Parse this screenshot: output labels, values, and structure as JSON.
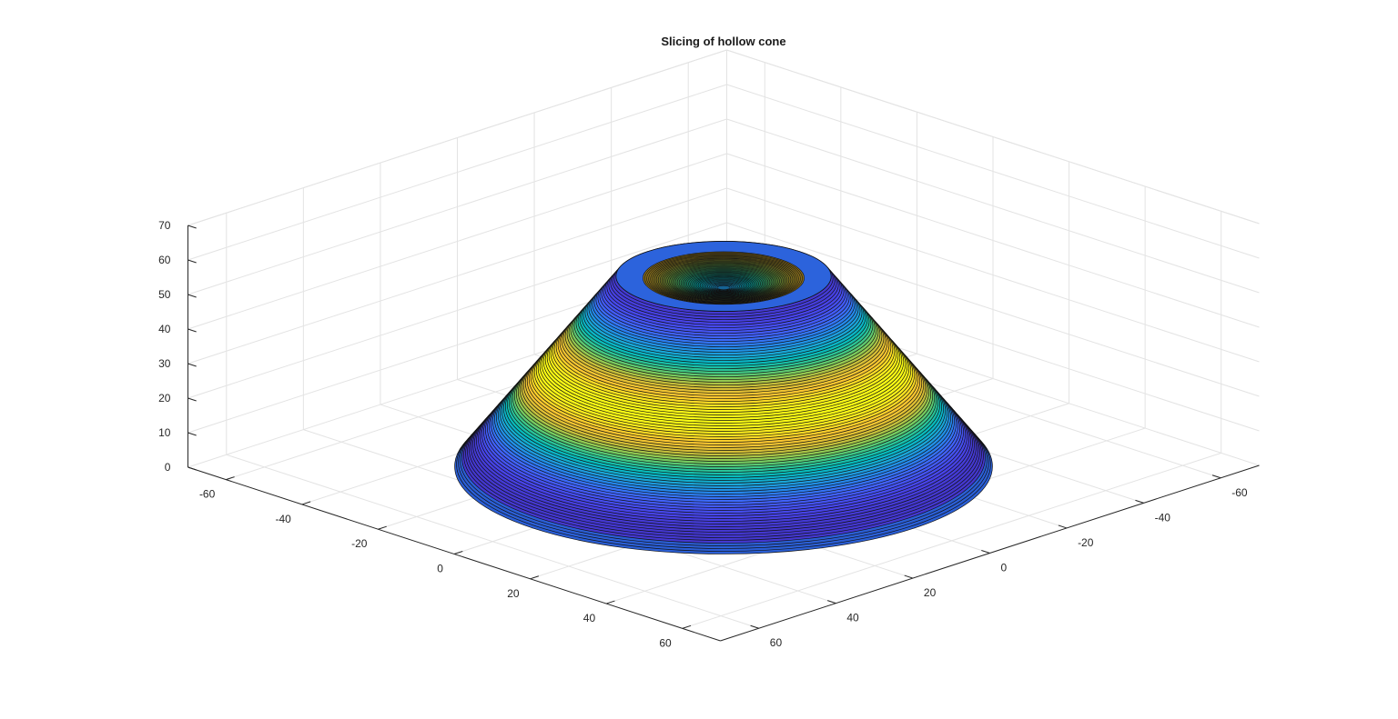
{
  "chart_data": {
    "type": "surface3d",
    "title": "Slicing of hollow cone",
    "colormap": "parula",
    "axes": {
      "x": {
        "range": [
          -70,
          70
        ],
        "ticks": [
          -60,
          -40,
          -20,
          0,
          20,
          40,
          60
        ],
        "tick_labels": [
          "-60",
          "-40",
          "-20",
          "0",
          "20",
          "40",
          "60"
        ]
      },
      "y": {
        "range": [
          -70,
          70
        ],
        "ticks": [
          -60,
          -40,
          -20,
          0,
          20,
          40,
          60
        ],
        "tick_labels": [
          "-60",
          "-40",
          "-20",
          "0",
          "20",
          "40",
          "60"
        ]
      },
      "z": {
        "range": [
          0,
          70
        ],
        "ticks": [
          0,
          10,
          20,
          30,
          40,
          50,
          60,
          70
        ],
        "tick_labels": [
          "0",
          "10",
          "20",
          "30",
          "40",
          "50",
          "60",
          "70"
        ]
      }
    },
    "grid": true,
    "view": {
      "azimuth": -45,
      "elevation": 30
    },
    "cone": {
      "base_radius": 50,
      "top_radius": 20,
      "height": 55,
      "inner_top_radius": 15,
      "slice_count": 90,
      "top_ring_color": "#2c63dc"
    }
  }
}
